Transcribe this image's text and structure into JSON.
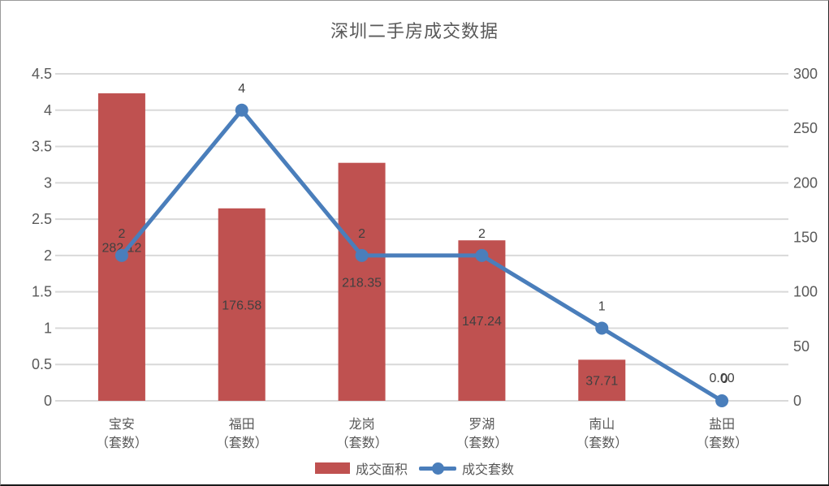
{
  "chart": {
    "title": "深圳二手房成交数据"
  },
  "chart_data": {
    "type": "combo-bar-line",
    "title": "深圳二手房成交数据",
    "categories": [
      {
        "name": "宝安",
        "sub": "（套数）"
      },
      {
        "name": "福田",
        "sub": "（套数）"
      },
      {
        "name": "龙岗",
        "sub": "（套数）"
      },
      {
        "name": "罗湖",
        "sub": "（套数）"
      },
      {
        "name": "南山",
        "sub": "（套数）"
      },
      {
        "name": "盐田",
        "sub": "（套数）"
      }
    ],
    "series": [
      {
        "name": "成交面积",
        "type": "bar",
        "axis": "right",
        "color": "#BF5150",
        "values": [
          282.12,
          176.58,
          218.35,
          147.24,
          37.71,
          0
        ],
        "value_labels": [
          "282.12",
          "176.58",
          "218.35",
          "147.24",
          "37.71",
          "0.00"
        ]
      },
      {
        "name": "成交套数",
        "type": "line",
        "axis": "left",
        "color": "#4A7EBB",
        "values": [
          2,
          4,
          2,
          2,
          1,
          0
        ],
        "value_labels": [
          "2",
          "4",
          "2",
          "2",
          "1",
          "0"
        ]
      }
    ],
    "left_axis": {
      "min": 0,
      "max": 4.5,
      "step": 0.5,
      "tick_labels": [
        "4.5",
        "4",
        "3.5",
        "3",
        "2.5",
        "2",
        "1.5",
        "1",
        "0.5",
        "0"
      ]
    },
    "right_axis": {
      "min": 0,
      "max": 300,
      "step": 50,
      "tick_labels": [
        "300",
        "250",
        "200",
        "150",
        "100",
        "50",
        "0"
      ]
    },
    "legend_position": "bottom",
    "grid": "horizontal",
    "colors": {
      "bar": "#BF5150",
      "line": "#4A7EBB",
      "gridline": "#D9D9D9",
      "axis_text": "#595959",
      "data_label_text": "#404040",
      "title_text": "#595959"
    }
  }
}
